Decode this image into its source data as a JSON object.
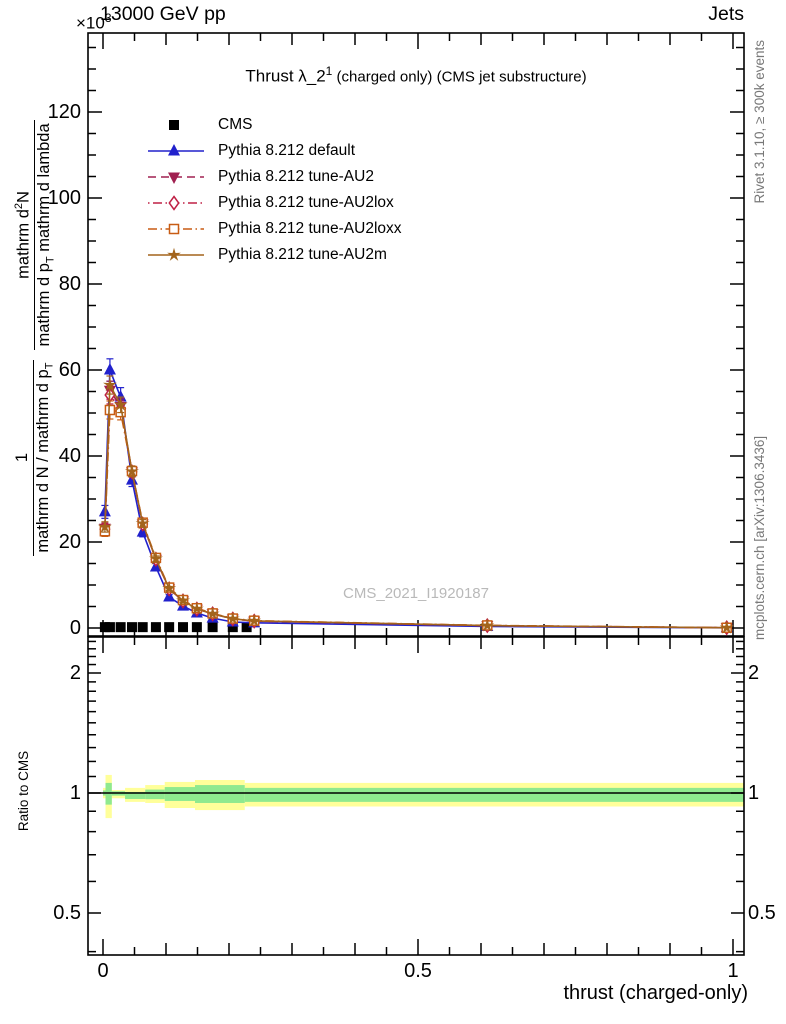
{
  "header": {
    "scale_prefix": "×10",
    "scale_exponent": "3",
    "title": "13000 GeV pp",
    "right_title": "Jets"
  },
  "plot_title": {
    "main": "Thrust λ_2",
    "exponent": "1",
    "suffix": " (charged only) (CMS jet substructure)"
  },
  "legend": {
    "items": [
      {
        "label": "CMS",
        "marker": "square_filled",
        "color": "#000000",
        "line": "none"
      },
      {
        "label": "Pythia 8.212 default",
        "marker": "triangle_up",
        "color": "#2121cc",
        "line": "solid"
      },
      {
        "label": "Pythia 8.212 tune-AU2",
        "marker": "triangle_down",
        "color": "#a02050",
        "line": "dashed"
      },
      {
        "label": "Pythia 8.212 tune-AU2lox",
        "marker": "diamond_open",
        "color": "#bf2045",
        "line": "dashdot"
      },
      {
        "label": "Pythia 8.212 tune-AU2loxx",
        "marker": "square_open",
        "color": "#c85c14",
        "line": "dashdot2"
      },
      {
        "label": "Pythia 8.212 tune-AU2m",
        "marker": "star",
        "color": "#a3641c",
        "line": "solid"
      }
    ]
  },
  "watermark": "CMS_2021_I1920187",
  "side_notes": {
    "top": "Rivet 3.1.10, ≥ 300k events",
    "bottom": "mcplots.cern.ch [arXiv:1306.3436]"
  },
  "y_axis": {
    "frac1_num": "1",
    "frac1_den_main": "mathrm d N / mathrm d p",
    "frac1_den_sub": "T",
    "frac2_num_main": "mathrm d",
    "frac2_num_sup": "2",
    "frac2_num_tail": "N",
    "frac2_den_a": "mathrm d p",
    "frac2_den_sub": "T",
    "frac2_den_b": " mathrm d lambda"
  },
  "ratio_axis_label": "Ratio to CMS",
  "x_axis_label": "thrust (charged-only)",
  "chart_data": {
    "type": "line",
    "title": "Thrust λ_2^1 (charged only) (CMS jet substructure)",
    "xlabel": "thrust (charged-only)",
    "ylabel": "1/(mathrm d N/mathrm d p_T) · mathrm d^2 N/(mathrm d p_T mathrm d lambda)",
    "y_unit_scale": "×10^3",
    "xlim": [
      -0.025,
      1.02
    ],
    "ylim": [
      0,
      138
    ],
    "grid": false,
    "legend_position": "top-left",
    "x_major_ticks": [
      {
        "v": 0,
        "label": "0"
      },
      {
        "v": 0.5,
        "label": "0.5"
      },
      {
        "v": 1,
        "label": "1"
      }
    ],
    "y_major_ticks": [
      {
        "v": 0,
        "label": "0"
      },
      {
        "v": 20,
        "label": "20"
      },
      {
        "v": 40,
        "label": "40"
      },
      {
        "v": 60,
        "label": "60"
      },
      {
        "v": 80,
        "label": "80"
      },
      {
        "v": 100,
        "label": "100"
      },
      {
        "v": 120,
        "label": "120"
      }
    ],
    "ratio_major_ticks": [
      {
        "v": 0.5,
        "label": "0.5"
      },
      {
        "v": 1,
        "label": "1"
      },
      {
        "v": 2,
        "label": "2"
      }
    ],
    "ratio_minor_ticks": [
      0.4,
      0.6,
      0.7,
      0.8,
      0.9,
      1.1,
      1.2,
      1.3,
      1.4,
      1.5,
      1.6,
      1.7,
      1.8,
      1.9,
      2.1,
      2.2,
      2.3,
      2.4
    ],
    "ratio_ylim_log": [
      0.39,
      2.46
    ],
    "x": [
      0.003,
      0.011,
      0.028,
      0.046,
      0.063,
      0.084,
      0.105,
      0.127,
      0.149,
      0.174,
      0.206,
      0.24,
      0.61,
      0.99
    ],
    "series": [
      {
        "name": "Pythia 8.212 default",
        "color": "#2121cc",
        "line": "solid",
        "marker": "triangle_up",
        "values": [
          27,
          60,
          53.7,
          34.4,
          22.3,
          14.2,
          7.2,
          5.1,
          3.5,
          2.3,
          1.4,
          1.2,
          0.35,
          0.05
        ],
        "errors": [
          1.5,
          2.6,
          2.2,
          1.5,
          1.1,
          0.8,
          0.55,
          0.45,
          0.35,
          0.3,
          0.25,
          0.2,
          0.1,
          0.03
        ]
      },
      {
        "name": "Pythia 8.212 tune-AU2",
        "color": "#a02050",
        "line": "dashed",
        "marker": "triangle_down",
        "values": [
          23.2,
          55.3,
          51.5,
          36.3,
          24.2,
          16,
          9.1,
          6.3,
          4.4,
          3.3,
          2.1,
          1.6,
          0.55,
          0.06
        ],
        "errors": [
          1.2,
          2.1,
          1.8,
          1.2,
          0.9,
          0.65,
          0.45,
          0.35,
          0.3,
          0.25,
          0.2,
          0.15,
          0.08,
          0.02
        ]
      },
      {
        "name": "Pythia 8.212 tune-AU2lox",
        "color": "#bf2045",
        "line": "dashdot",
        "marker": "diamond_open",
        "values": [
          23,
          54.2,
          51,
          36.3,
          24.2,
          16,
          9.1,
          6.3,
          4.4,
          3.3,
          2.1,
          1.6,
          0.55,
          0.06
        ],
        "errors": [
          1.2,
          2.1,
          1.8,
          1.2,
          0.9,
          0.65,
          0.45,
          0.35,
          0.3,
          0.25,
          0.2,
          0.15,
          0.08,
          0.02
        ]
      },
      {
        "name": "Pythia 8.212 tune-AU2loxx",
        "color": "#c85c14",
        "line": "dashdot2",
        "marker": "square_open",
        "values": [
          22.5,
          50.7,
          50.2,
          36.5,
          24.5,
          16.3,
          9.4,
          6.5,
          4.6,
          3.4,
          2.2,
          1.7,
          0.6,
          0.06
        ],
        "errors": [
          1.2,
          2.1,
          1.8,
          1.2,
          0.9,
          0.65,
          0.45,
          0.35,
          0.3,
          0.25,
          0.2,
          0.15,
          0.08,
          0.02
        ]
      },
      {
        "name": "Pythia 8.212 tune-AU2m",
        "color": "#a3641c",
        "line": "solid",
        "marker": "star",
        "values": [
          23.5,
          56.5,
          51.9,
          36.4,
          24.3,
          16.1,
          9.2,
          6.35,
          4.45,
          3.3,
          2.15,
          1.65,
          0.55,
          0.06
        ],
        "errors": [
          1.2,
          2.1,
          1.8,
          1.2,
          0.9,
          0.65,
          0.45,
          0.35,
          0.3,
          0.25,
          0.2,
          0.15,
          0.08,
          0.02
        ]
      }
    ],
    "cms_points": {
      "name": "CMS",
      "color": "#000000",
      "marker": "square_filled",
      "x": [
        0.003,
        0.011,
        0.028,
        0.046,
        0.063,
        0.084,
        0.105,
        0.127,
        0.149,
        0.174,
        0.206,
        0.228
      ],
      "values": [
        0.2,
        0.2,
        0.2,
        0.2,
        0.2,
        0.2,
        0.2,
        0.2,
        0.2,
        0.2,
        0.2,
        0.2
      ]
    },
    "ratio_baseline": 1,
    "ratio_bands": {
      "outer_color": "#ffff9a",
      "inner_color": "#8fe98f",
      "segments": [
        [
          0.0,
          0.004,
          0.97,
          1.03,
          0.985,
          1.015
        ],
        [
          0.004,
          0.014,
          0.865,
          1.11,
          0.935,
          1.06
        ],
        [
          0.014,
          0.035,
          0.97,
          1.017,
          0.985,
          1.01
        ],
        [
          0.035,
          0.067,
          0.95,
          1.03,
          0.966,
          1.006
        ],
        [
          0.067,
          0.098,
          0.944,
          1.047,
          0.965,
          1.02
        ],
        [
          0.098,
          0.146,
          0.917,
          1.066,
          0.955,
          1.035
        ],
        [
          0.146,
          0.225,
          0.906,
          1.078,
          0.944,
          1.047
        ],
        [
          0.225,
          1.02,
          0.925,
          1.06,
          0.95,
          1.03
        ]
      ]
    }
  }
}
